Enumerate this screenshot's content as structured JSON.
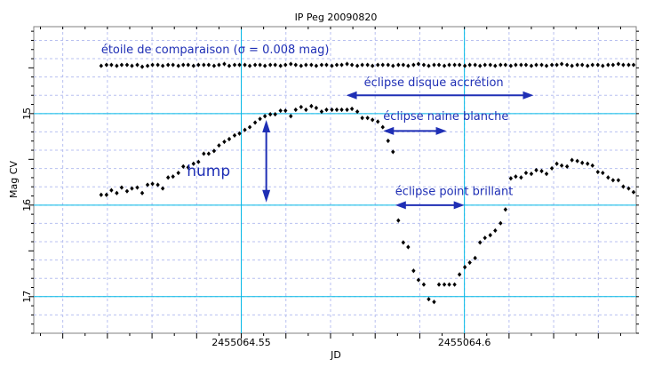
{
  "chart_data": {
    "type": "scatter",
    "title": "IP Peg 20090820",
    "xlabel": "JD",
    "ylabel": "Mag CV",
    "xlim": [
      2455064.5035,
      2455064.6385
    ],
    "ylim": [
      17.4,
      14.05
    ],
    "y_inverted": true,
    "x_ticks": [
      {
        "value": 2455064.55,
        "label": "2455064.55"
      },
      {
        "value": 2455064.6,
        "label": "2455064.6"
      }
    ],
    "y_ticks": [
      {
        "value": 15,
        "label": "15"
      },
      {
        "value": 16,
        "label": "16"
      },
      {
        "value": 17,
        "label": "17"
      }
    ],
    "grid": true,
    "marker_color": "#000000",
    "gridline_color": "#00b8e6",
    "annotation_color": "#1f2fb5",
    "series": [
      {
        "name": "",
        "points": [
          [
            2455064.5186,
            15.888
          ],
          [
            2455064.5198,
            15.888
          ],
          [
            2455064.5209,
            15.838
          ],
          [
            2455064.5221,
            15.868
          ],
          [
            2455064.5232,
            15.808
          ],
          [
            2455064.5244,
            15.848
          ],
          [
            2455064.5255,
            15.818
          ],
          [
            2455064.5267,
            15.808
          ],
          [
            2455064.5278,
            15.868
          ],
          [
            2455064.529,
            15.778
          ],
          [
            2455064.5301,
            15.768
          ],
          [
            2455064.5313,
            15.778
          ],
          [
            2455064.5324,
            15.818
          ],
          [
            2455064.5336,
            15.698
          ],
          [
            2455064.5347,
            15.688
          ],
          [
            2455064.5359,
            15.648
          ],
          [
            2455064.537,
            15.578
          ],
          [
            2455064.5381,
            15.588
          ],
          [
            2455064.5393,
            15.548
          ],
          [
            2455064.5404,
            15.528
          ],
          [
            2455064.5416,
            15.438
          ],
          [
            2455064.5427,
            15.438
          ],
          [
            2455064.5439,
            15.408
          ],
          [
            2455064.545,
            15.348
          ],
          [
            2455064.5462,
            15.308
          ],
          [
            2455064.5473,
            15.278
          ],
          [
            2455064.5485,
            15.238
          ],
          [
            2455064.5496,
            15.218
          ],
          [
            2455064.5508,
            15.178
          ],
          [
            2455064.5519,
            15.148
          ],
          [
            2455064.5531,
            15.098
          ],
          [
            2455064.5542,
            15.058
          ],
          [
            2455064.5553,
            15.028
          ],
          [
            2455064.5565,
            15.008
          ],
          [
            2455064.5576,
            15.008
          ],
          [
            2455064.5588,
            14.968
          ],
          [
            2455064.5599,
            14.968
          ],
          [
            2455064.5611,
            15.028
          ],
          [
            2455064.5622,
            14.958
          ],
          [
            2455064.5634,
            14.928
          ],
          [
            2455064.5645,
            14.958
          ],
          [
            2455064.5657,
            14.918
          ],
          [
            2455064.5668,
            14.938
          ],
          [
            2455064.568,
            14.978
          ],
          [
            2455064.5691,
            14.958
          ],
          [
            2455064.5703,
            14.958
          ],
          [
            2455064.5714,
            14.958
          ],
          [
            2455064.5725,
            14.958
          ],
          [
            2455064.5737,
            14.958
          ],
          [
            2455064.5748,
            14.948
          ],
          [
            2455064.576,
            14.978
          ],
          [
            2455064.5771,
            15.048
          ],
          [
            2455064.5783,
            15.048
          ],
          [
            2455064.5794,
            15.068
          ],
          [
            2455064.5806,
            15.088
          ],
          [
            2455064.5817,
            15.148
          ],
          [
            2455064.5829,
            15.298
          ],
          [
            2455064.584,
            15.418
          ],
          [
            2455064.5852,
            16.168
          ],
          [
            2455064.5863,
            16.408
          ],
          [
            2455064.5874,
            16.458
          ],
          [
            2455064.5886,
            16.718
          ],
          [
            2455064.5897,
            16.818
          ],
          [
            2455064.5909,
            16.868
          ],
          [
            2455064.592,
            17.028
          ],
          [
            2455064.5932,
            17.058
          ],
          [
            2455064.5943,
            16.868
          ],
          [
            2455064.5955,
            16.868
          ],
          [
            2455064.5966,
            16.868
          ],
          [
            2455064.5978,
            16.868
          ],
          [
            2455064.5989,
            16.758
          ],
          [
            2455064.6001,
            16.678
          ],
          [
            2455064.6012,
            16.628
          ],
          [
            2455064.6024,
            16.578
          ],
          [
            2455064.6035,
            16.408
          ],
          [
            2455064.6046,
            16.358
          ],
          [
            2455064.6058,
            16.328
          ],
          [
            2455064.6069,
            16.278
          ],
          [
            2455064.6081,
            16.198
          ],
          [
            2455064.6092,
            16.048
          ],
          [
            2455064.6104,
            15.708
          ],
          [
            2455064.6115,
            15.688
          ],
          [
            2455064.6127,
            15.698
          ],
          [
            2455064.6138,
            15.648
          ],
          [
            2455064.615,
            15.658
          ],
          [
            2455064.6161,
            15.618
          ],
          [
            2455064.6173,
            15.628
          ],
          [
            2455064.6184,
            15.658
          ],
          [
            2455064.6196,
            15.598
          ],
          [
            2455064.6207,
            15.548
          ],
          [
            2455064.6218,
            15.568
          ],
          [
            2455064.623,
            15.578
          ],
          [
            2455064.6241,
            15.508
          ],
          [
            2455064.6253,
            15.518
          ],
          [
            2455064.6264,
            15.538
          ],
          [
            2455064.6276,
            15.548
          ],
          [
            2455064.6287,
            15.568
          ],
          [
            2455064.6299,
            15.638
          ],
          [
            2455064.631,
            15.648
          ],
          [
            2455064.6322,
            15.698
          ],
          [
            2455064.6333,
            15.728
          ],
          [
            2455064.6345,
            15.728
          ],
          [
            2455064.6356,
            15.798
          ],
          [
            2455064.6368,
            15.818
          ],
          [
            2455064.6379,
            15.858
          ]
        ]
      },
      {
        "name": "",
        "points": [
          [
            2455064.5186,
            14.478
          ],
          [
            2455064.5198,
            14.468
          ],
          [
            2455064.5209,
            14.468
          ],
          [
            2455064.5221,
            14.478
          ],
          [
            2455064.5232,
            14.468
          ],
          [
            2455064.5244,
            14.468
          ],
          [
            2455064.5255,
            14.478
          ],
          [
            2455064.5267,
            14.468
          ],
          [
            2455064.5278,
            14.488
          ],
          [
            2455064.529,
            14.478
          ],
          [
            2455064.5301,
            14.468
          ],
          [
            2455064.5313,
            14.468
          ],
          [
            2455064.5324,
            14.478
          ],
          [
            2455064.5336,
            14.468
          ],
          [
            2455064.5347,
            14.468
          ],
          [
            2455064.5359,
            14.478
          ],
          [
            2455064.537,
            14.468
          ],
          [
            2455064.5381,
            14.468
          ],
          [
            2455064.5393,
            14.478
          ],
          [
            2455064.5404,
            14.468
          ],
          [
            2455064.5416,
            14.468
          ],
          [
            2455064.5427,
            14.468
          ],
          [
            2455064.5439,
            14.478
          ],
          [
            2455064.545,
            14.468
          ],
          [
            2455064.5462,
            14.458
          ],
          [
            2455064.5473,
            14.478
          ],
          [
            2455064.5485,
            14.468
          ],
          [
            2455064.5496,
            14.468
          ],
          [
            2455064.5508,
            14.468
          ],
          [
            2455064.5519,
            14.478
          ],
          [
            2455064.5531,
            14.468
          ],
          [
            2455064.5542,
            14.468
          ],
          [
            2455064.5553,
            14.478
          ],
          [
            2455064.5565,
            14.468
          ],
          [
            2455064.5576,
            14.468
          ],
          [
            2455064.5588,
            14.478
          ],
          [
            2455064.5599,
            14.468
          ],
          [
            2455064.5611,
            14.458
          ],
          [
            2455064.5622,
            14.468
          ],
          [
            2455064.5634,
            14.478
          ],
          [
            2455064.5645,
            14.468
          ],
          [
            2455064.5657,
            14.468
          ],
          [
            2455064.5668,
            14.478
          ],
          [
            2455064.568,
            14.468
          ],
          [
            2455064.5691,
            14.468
          ],
          [
            2455064.5703,
            14.478
          ],
          [
            2455064.5714,
            14.468
          ],
          [
            2455064.5725,
            14.468
          ],
          [
            2455064.5737,
            14.458
          ],
          [
            2455064.5748,
            14.468
          ],
          [
            2455064.576,
            14.478
          ],
          [
            2455064.5771,
            14.468
          ],
          [
            2455064.5783,
            14.468
          ],
          [
            2455064.5794,
            14.478
          ],
          [
            2455064.5806,
            14.468
          ],
          [
            2455064.5817,
            14.468
          ],
          [
            2455064.5829,
            14.468
          ],
          [
            2455064.584,
            14.478
          ],
          [
            2455064.5852,
            14.468
          ],
          [
            2455064.5863,
            14.468
          ],
          [
            2455064.5874,
            14.478
          ],
          [
            2455064.5886,
            14.468
          ],
          [
            2455064.5897,
            14.458
          ],
          [
            2455064.5909,
            14.468
          ],
          [
            2455064.592,
            14.478
          ],
          [
            2455064.5932,
            14.468
          ],
          [
            2455064.5943,
            14.468
          ],
          [
            2455064.5955,
            14.478
          ],
          [
            2455064.5966,
            14.468
          ],
          [
            2455064.5978,
            14.468
          ],
          [
            2455064.5989,
            14.468
          ],
          [
            2455064.6001,
            14.478
          ],
          [
            2455064.6012,
            14.468
          ],
          [
            2455064.6024,
            14.468
          ],
          [
            2455064.6035,
            14.478
          ],
          [
            2455064.6046,
            14.468
          ],
          [
            2455064.6058,
            14.468
          ],
          [
            2455064.6069,
            14.478
          ],
          [
            2455064.6081,
            14.468
          ],
          [
            2455064.6092,
            14.468
          ],
          [
            2455064.6104,
            14.478
          ],
          [
            2455064.6115,
            14.468
          ],
          [
            2455064.6127,
            14.468
          ],
          [
            2455064.6138,
            14.468
          ],
          [
            2455064.615,
            14.478
          ],
          [
            2455064.6161,
            14.468
          ],
          [
            2455064.6173,
            14.468
          ],
          [
            2455064.6184,
            14.478
          ],
          [
            2455064.6196,
            14.468
          ],
          [
            2455064.6207,
            14.468
          ],
          [
            2455064.6218,
            14.458
          ],
          [
            2455064.623,
            14.468
          ],
          [
            2455064.6241,
            14.478
          ],
          [
            2455064.6253,
            14.468
          ],
          [
            2455064.6264,
            14.468
          ],
          [
            2455064.6276,
            14.478
          ],
          [
            2455064.6287,
            14.468
          ],
          [
            2455064.6299,
            14.468
          ],
          [
            2455064.631,
            14.478
          ],
          [
            2455064.6322,
            14.468
          ],
          [
            2455064.6333,
            14.468
          ],
          [
            2455064.6345,
            14.458
          ],
          [
            2455064.6356,
            14.468
          ],
          [
            2455064.6368,
            14.468
          ],
          [
            2455064.6379,
            14.468
          ]
        ]
      }
    ],
    "annotations": [
      {
        "text": "étoile de comparaison (σ = 0.008 mag)",
        "x": 2455064.5186,
        "y": 14.34
      },
      {
        "text": "éclipse disque accrétion",
        "x": 2455064.5775,
        "y": 14.7,
        "arrow_x": [
          2455064.5735,
          2455064.6155
        ],
        "arrow_y": 14.8
      },
      {
        "text": "éclipse naine blanche",
        "x": 2455064.5818,
        "y": 15.07,
        "arrow_x": [
          2455064.5818,
          2455064.596
        ],
        "arrow_y": 15.19
      },
      {
        "text": "hump",
        "x": 2455064.5378,
        "y": 15.68
      },
      {
        "text": "",
        "arrow_x": [
          2455064.5556,
          2455064.5556
        ],
        "arrow_y": [
          15.07,
          15.97
        ]
      },
      {
        "text": "éclipse point brillant",
        "x": 2455064.5845,
        "y": 15.89,
        "arrow_x": [
          2455064.5845,
          2455064.6
        ],
        "arrow_y": 16.0
      }
    ]
  }
}
